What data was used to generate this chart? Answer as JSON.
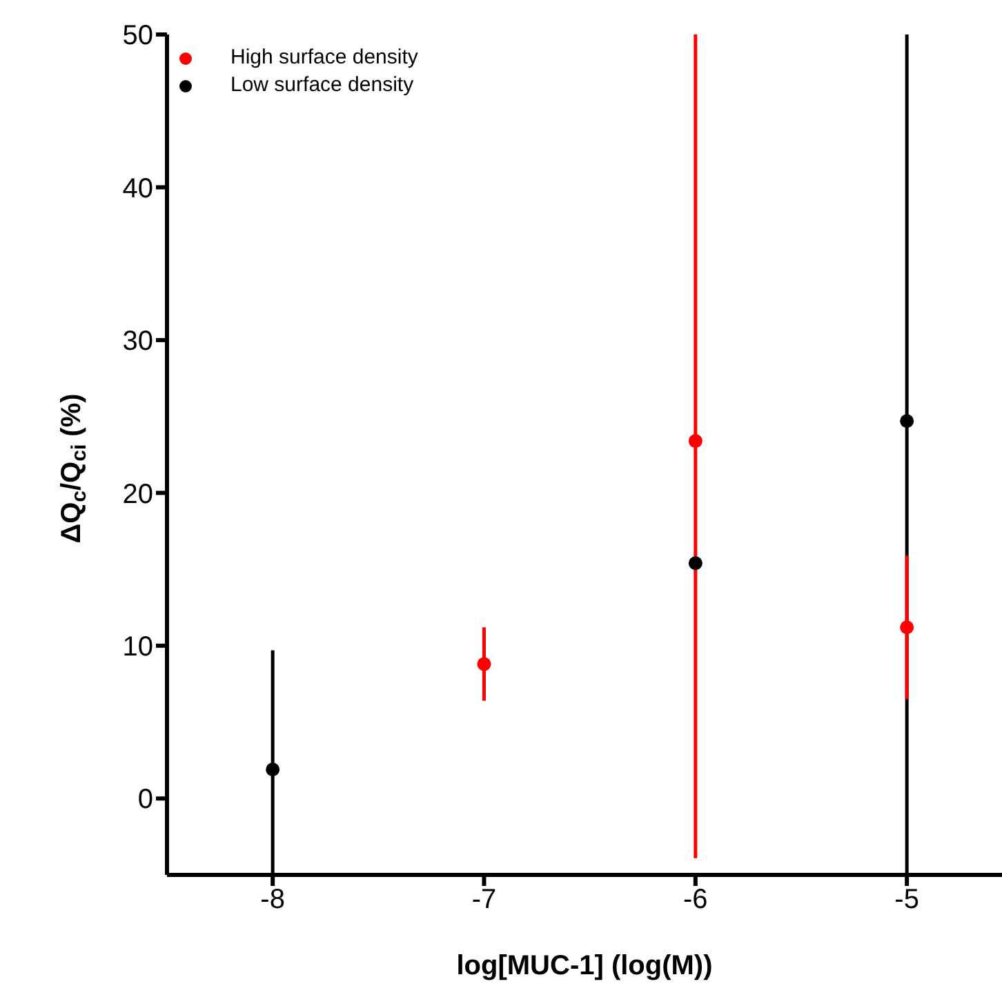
{
  "chart_data": {
    "type": "scatter",
    "xlabel": "log[MUC-1] (log(M))",
    "ylabel": "ΔQ$_{c}$/Q$_{ci}$ (%)",
    "xlim": [
      -8.5,
      -4.55
    ],
    "xticks": [
      -8,
      -7,
      -6,
      -5
    ],
    "ylim": [
      -5,
      50
    ],
    "yticks": [
      0,
      10,
      20,
      30,
      40,
      50
    ],
    "grid": false,
    "legend": "top left",
    "marker": "circle",
    "series": [
      {
        "name": "Low surface density",
        "color": "#000000",
        "x": [
          -8,
          -6,
          -5
        ],
        "values": [
          1.9,
          15.4,
          24.7
        ],
        "errors": [
          [
            -5,
            9.7
          ],
          null,
          [
            -5,
            50
          ]
        ]
      },
      {
        "name": "High surface density",
        "color": "#ff0000",
        "x": [
          -7,
          -6,
          -5
        ],
        "values": [
          8.8,
          23.4,
          11.2
        ],
        "errors": [
          [
            6.4,
            11.2
          ],
          [
            -3.9,
            50
          ],
          [
            6.5,
            15.9
          ]
        ]
      }
    ]
  }
}
